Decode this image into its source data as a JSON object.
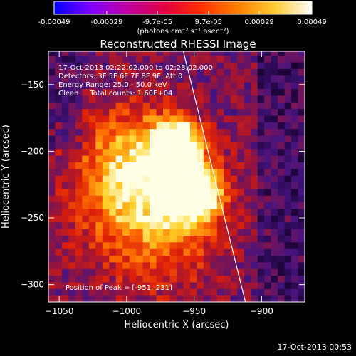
{
  "title": "Reconstructed RHESSI Image",
  "colorbar": {
    "unit_label": "(photons cm⁻² s⁻¹ asec⁻²)",
    "ticks": [
      "-0.00049",
      "-0.00029",
      "-9.7e-05",
      "9.7e-05",
      "0.00029",
      "0.00049"
    ],
    "tick_values": [
      -0.00049,
      -0.00029,
      -9.7e-05,
      9.7e-05,
      0.00029,
      0.00049
    ],
    "range": [
      -0.00049,
      0.00049
    ],
    "colors": [
      "#0000ff",
      "#8000ff",
      "#c000a0",
      "#e00040",
      "#ff3000",
      "#ff8000",
      "#ffcc30",
      "#ffffff"
    ]
  },
  "info": {
    "line1": "17-Oct-2013 02:22:02.000 to 02:28:02.000",
    "line2": "Detectors: 3F 5F 6F 7F 8F 9F, Att 0",
    "line3": "Energy Range: 25.0 - 50.0 keV",
    "line4": "Clean     Total counts: 1.60E+04"
  },
  "peak_text": "Position of Peak = [-951,-231]",
  "footer": "17-Oct-2013 00:53",
  "chart_data": {
    "type": "heatmap",
    "title": "Reconstructed RHESSI Image",
    "xlabel": "Heliocentric X (arcsec)",
    "ylabel": "Heliocentric Y (arcsec)",
    "xlim": [
      -1058,
      -868
    ],
    "ylim": [
      -313,
      -125
    ],
    "x_ticks": [
      -1050,
      -1000,
      -950,
      -900
    ],
    "y_ticks": [
      -150,
      -200,
      -250,
      -300
    ],
    "peak": {
      "x": -951,
      "y": -231
    },
    "limb_line": [
      [
        -958,
        -125
      ],
      [
        -912,
        -313
      ]
    ],
    "sources": [
      {
        "x": -951,
        "y": -231,
        "amplitude": 1.0,
        "width": 14
      },
      {
        "x": -963,
        "y": -193,
        "amplitude": 0.85,
        "width": 12
      },
      {
        "x": -993,
        "y": -210,
        "amplitude": 0.55,
        "width": 30
      },
      {
        "x": -980,
        "y": -255,
        "amplitude": 0.4,
        "width": 35
      }
    ]
  }
}
